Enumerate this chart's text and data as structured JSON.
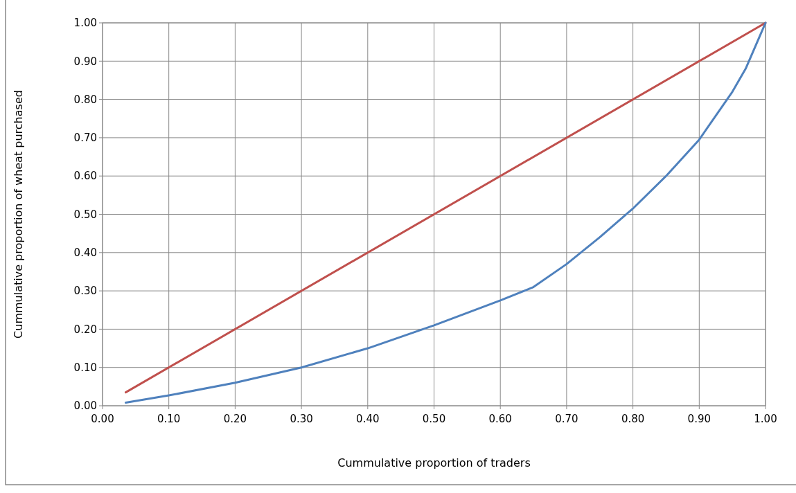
{
  "chart_data": {
    "type": "line",
    "xlabel": "Cummulative proportion of traders",
    "ylabel": "Cummulative proportion of wheat purchased",
    "xlim": [
      0,
      1
    ],
    "ylim": [
      0,
      1
    ],
    "xticks": [
      {
        "value": 0,
        "label": "0.00"
      },
      {
        "value": 0.1,
        "label": "0.10"
      },
      {
        "value": 0.2,
        "label": "0.20"
      },
      {
        "value": 0.3,
        "label": "0.30"
      },
      {
        "value": 0.4,
        "label": "0.40"
      },
      {
        "value": 0.5,
        "label": "0.50"
      },
      {
        "value": 0.6,
        "label": "0.60"
      },
      {
        "value": 0.7,
        "label": "0.70"
      },
      {
        "value": 0.8,
        "label": "0.80"
      },
      {
        "value": 0.9,
        "label": "0.90"
      },
      {
        "value": 1,
        "label": "1.00"
      }
    ],
    "yticks": [
      {
        "value": 0,
        "label": "0.00"
      },
      {
        "value": 0.1,
        "label": "0.10"
      },
      {
        "value": 0.2,
        "label": "0.20"
      },
      {
        "value": 0.3,
        "label": "0.30"
      },
      {
        "value": 0.4,
        "label": "0.40"
      },
      {
        "value": 0.5,
        "label": "0.50"
      },
      {
        "value": 0.6,
        "label": "0.60"
      },
      {
        "value": 0.7,
        "label": "0.70"
      },
      {
        "value": 0.8,
        "label": "0.80"
      },
      {
        "value": 0.9,
        "label": "0.90"
      },
      {
        "value": 1,
        "label": "1.00"
      }
    ],
    "grid": true,
    "marker": "none",
    "line_style": "solid",
    "series": [
      {
        "color": "#c0504d",
        "x": [
          0.035,
          1
        ],
        "values": [
          0.035,
          1
        ]
      },
      {
        "color": "#4f81bd",
        "x": [
          0.035,
          0.1,
          0.2,
          0.3,
          0.4,
          0.5,
          0.6,
          0.65,
          0.7,
          0.75,
          0.8,
          0.85,
          0.9,
          0.95,
          0.97,
          0.99,
          1
        ],
        "values": [
          0.008,
          0.027,
          0.06,
          0.1,
          0.15,
          0.21,
          0.275,
          0.31,
          0.37,
          0.44,
          0.515,
          0.6,
          0.695,
          0.82,
          0.88,
          0.96,
          1
        ]
      }
    ]
  }
}
